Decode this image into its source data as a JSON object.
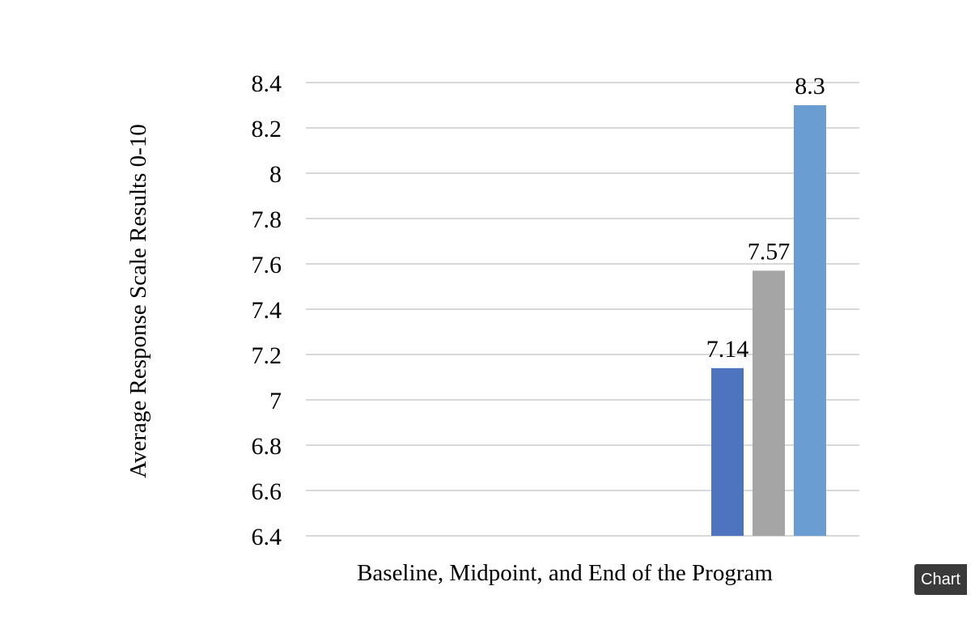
{
  "chart_data": {
    "type": "bar",
    "title": "",
    "xlabel": "Baseline, Midpoint, and End of the Program",
    "ylabel": "Average Response Scale Results 0-10",
    "ylim": [
      6.4,
      8.4
    ],
    "yticks": [
      "8.4",
      "8.2",
      "8",
      "7.8",
      "7.6",
      "7.4",
      "7.2",
      "7",
      "6.8",
      "6.6",
      "6.4"
    ],
    "grid": true,
    "legend": "none",
    "series": [
      {
        "values": [
          7.14
        ],
        "label": "7.14",
        "color": "#4f74bf"
      },
      {
        "values": [
          7.57
        ],
        "label": "7.57",
        "color": "#a5a5a5"
      },
      {
        "values": [
          8.3
        ],
        "label": "8.3",
        "color": "#6a9dd2"
      }
    ]
  },
  "tooltip": {
    "text": "Chart"
  }
}
